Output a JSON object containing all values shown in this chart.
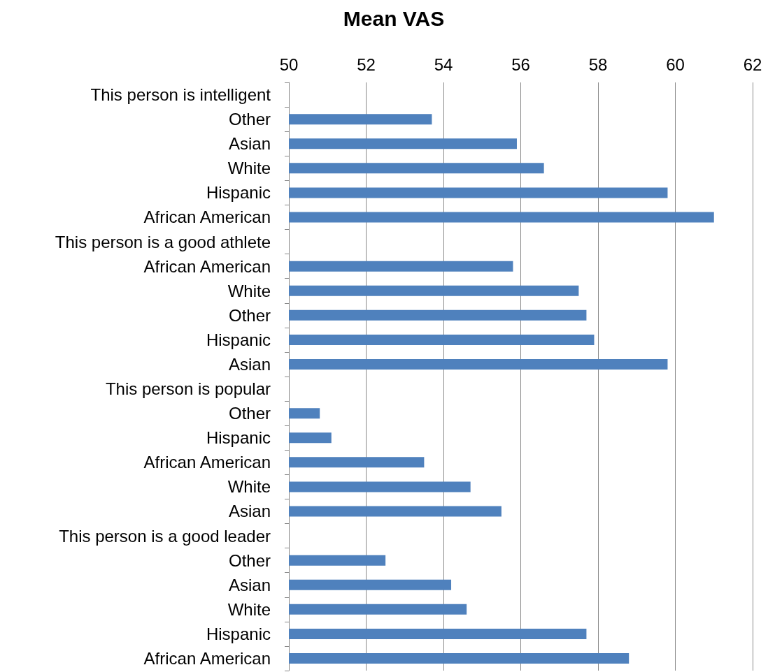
{
  "chart_data": {
    "type": "bar",
    "orientation": "horizontal",
    "title": "Mean VAS",
    "categories": [
      "This person is intelligent",
      "Other",
      "Asian",
      "White",
      "Hispanic",
      "African American",
      "This person is a good athlete",
      "African American",
      "White",
      "Other",
      "Hispanic",
      "Asian",
      "This person is popular",
      "Other",
      "Hispanic",
      "African American",
      "White",
      "Asian",
      "This person is a good leader",
      "Other",
      "Asian",
      "White",
      "Hispanic",
      "African American"
    ],
    "values": [
      null,
      53.7,
      55.9,
      56.6,
      59.8,
      61.0,
      null,
      55.8,
      57.5,
      57.7,
      57.9,
      59.8,
      null,
      50.8,
      51.1,
      53.5,
      54.7,
      55.5,
      null,
      52.5,
      54.2,
      54.6,
      57.7,
      58.8
    ],
    "color": "#4f81bd",
    "xlim": [
      50,
      62
    ],
    "xticks": [
      50,
      52,
      54,
      56,
      58,
      60,
      62
    ],
    "grid": "x"
  }
}
